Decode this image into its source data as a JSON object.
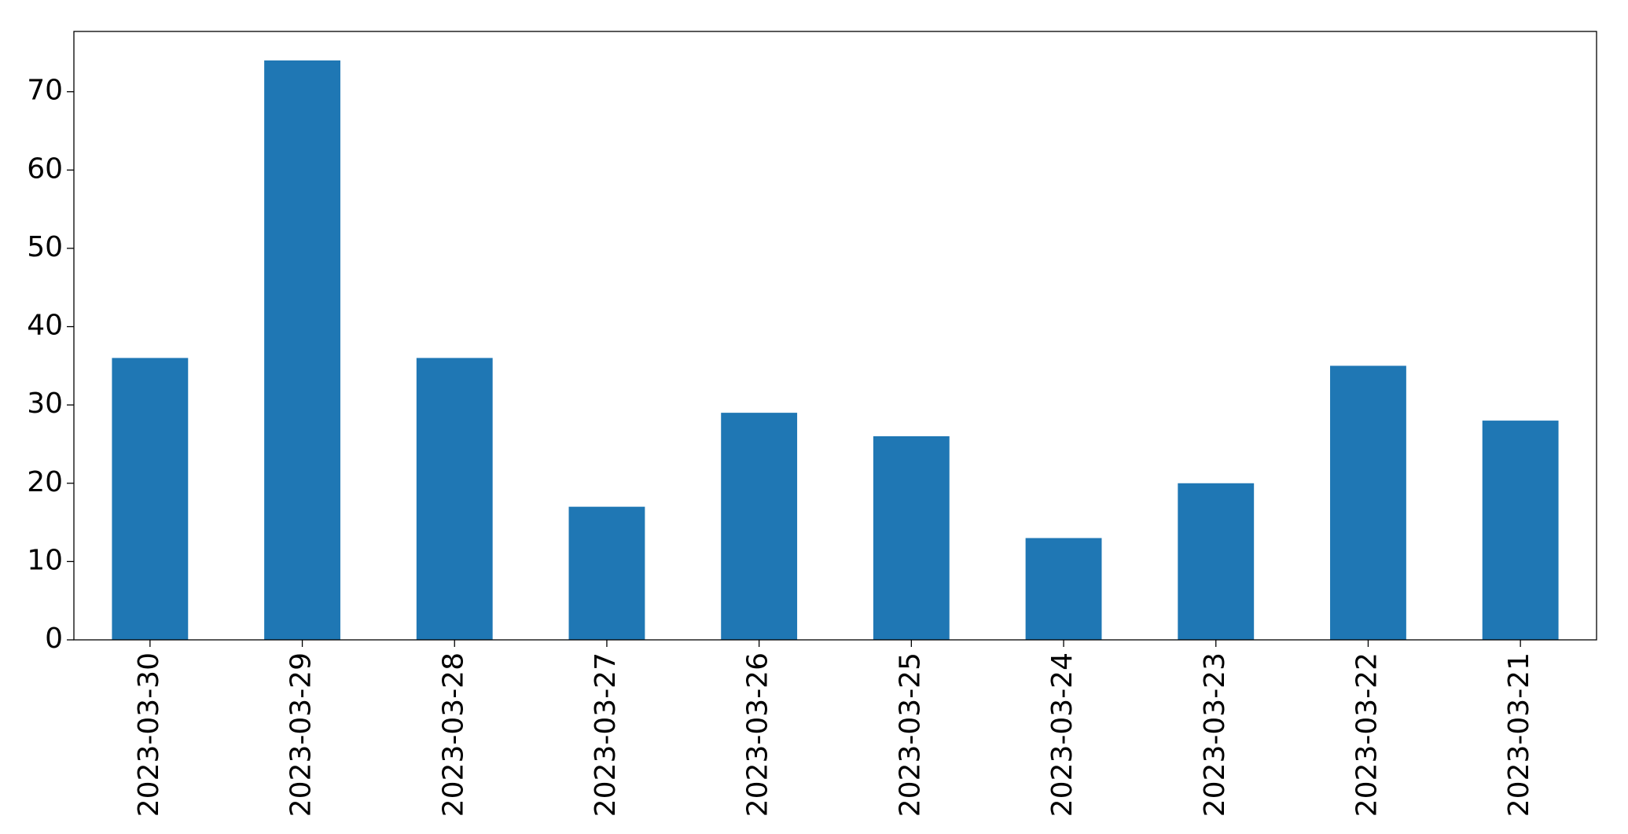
{
  "chart_data": {
    "type": "bar",
    "categories": [
      "2023-03-30",
      "2023-03-29",
      "2023-03-28",
      "2023-03-27",
      "2023-03-26",
      "2023-03-25",
      "2023-03-24",
      "2023-03-23",
      "2023-03-22",
      "2023-03-21"
    ],
    "values": [
      36,
      74,
      36,
      17,
      29,
      26,
      13,
      20,
      35,
      28
    ],
    "color": "#1f77b4",
    "ylim": [
      0,
      77.7
    ],
    "yticks": [
      0,
      10,
      20,
      30,
      40,
      50,
      60,
      70
    ],
    "grid": false
  }
}
